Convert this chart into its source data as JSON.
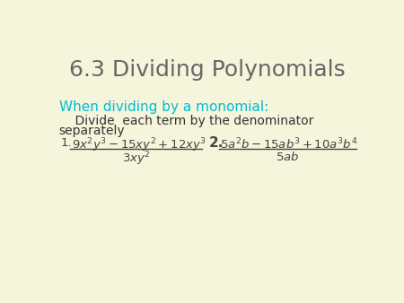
{
  "title": "6.3 Dividing Polynomials",
  "title_color": "#666666",
  "title_fontsize": 18,
  "background_color": "#f5f5dc",
  "heading_text": "When dividing by a monomial:",
  "heading_color": "#00bcd4",
  "heading_fontsize": 11,
  "rule_line1": "    Divide  each term by the denominator",
  "rule_line2": "separately",
  "rule_color": "#333333",
  "rule_fontsize": 10,
  "prob1_label": "1.",
  "prob1_numerator": "$9x^2y^3-15xy^2+12xy^3$",
  "prob1_denominator": "$3xy^2$",
  "prob2_label": "2.",
  "prob2_numerator": "$5a^2b-15ab^3+10a^3b^4$",
  "prob2_denominator": "$5ab$",
  "prob_color": "#444444",
  "prob_fontsize": 9.5,
  "label2_fontsize": 11
}
